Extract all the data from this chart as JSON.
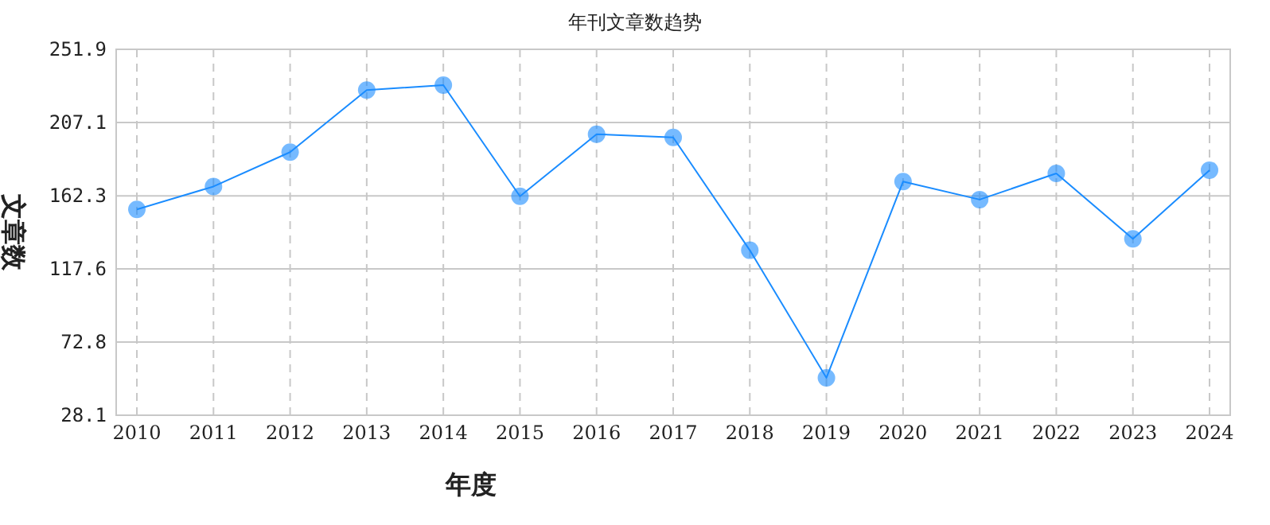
{
  "chart_data": {
    "type": "line",
    "title": "年刊文章数趋势",
    "xlabel": "年度",
    "ylabel": "文章数",
    "categories": [
      "2010",
      "2011",
      "2012",
      "2013",
      "2014",
      "2015",
      "2016",
      "2017",
      "2018",
      "2019",
      "2020",
      "2021",
      "2022",
      "2023",
      "2024"
    ],
    "series": [
      {
        "color": "#1a8cff",
        "values": [
          154,
          168,
          189,
          227,
          230,
          162,
          200,
          198,
          129,
          51,
          171,
          160,
          176,
          136,
          178
        ]
      }
    ],
    "ylim": [
      28.1,
      251.9
    ],
    "yticks": [
      28.1,
      72.8,
      117.6,
      162.3,
      207.1,
      251.9
    ],
    "grid": true,
    "marker": "circle",
    "line_style": "solid"
  }
}
